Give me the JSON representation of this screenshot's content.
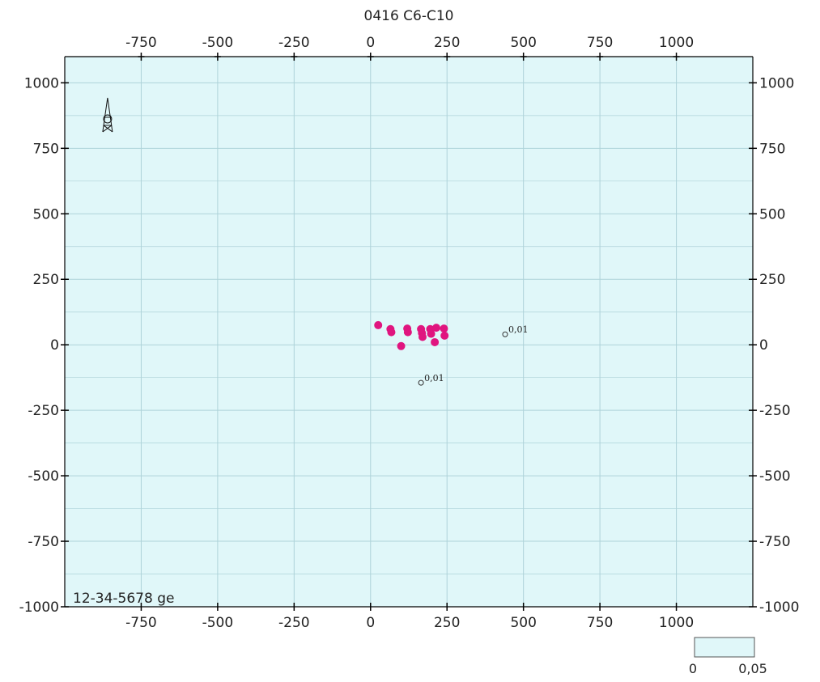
{
  "chart_data": {
    "type": "scatter",
    "title": "0416 C6-C10",
    "xlim": [
      -1000,
      1250
    ],
    "ylim": [
      -1000,
      1100
    ],
    "x_ticks": [
      -750,
      -500,
      -250,
      0,
      250,
      500,
      750,
      1000
    ],
    "y_ticks": [
      -1000,
      -750,
      -500,
      -250,
      0,
      250,
      500,
      750,
      1000
    ],
    "grid": true,
    "grid_x": [
      -750,
      -500,
      -250,
      0,
      250,
      500,
      750,
      1000
    ],
    "grid_y": [
      -1000,
      -750,
      -500,
      -250,
      0,
      250,
      500,
      750,
      1000
    ],
    "well_label": "12-34-5678 ge",
    "well_marker_position": {
      "x": -860,
      "y": 850
    },
    "series": [
      {
        "marker": "filled-circle",
        "color": "#e0157f",
        "points": [
          {
            "x": 25,
            "y": 75
          },
          {
            "x": 65,
            "y": 60
          },
          {
            "x": 68,
            "y": 48
          },
          {
            "x": 100,
            "y": -5
          },
          {
            "x": 120,
            "y": 62
          },
          {
            "x": 122,
            "y": 48
          },
          {
            "x": 165,
            "y": 60
          },
          {
            "x": 168,
            "y": 45
          },
          {
            "x": 170,
            "y": 30
          },
          {
            "x": 195,
            "y": 60
          },
          {
            "x": 198,
            "y": 42
          },
          {
            "x": 210,
            "y": 10
          },
          {
            "x": 215,
            "y": 65
          },
          {
            "x": 240,
            "y": 62
          },
          {
            "x": 242,
            "y": 35
          }
        ]
      },
      {
        "marker": "open-circle",
        "color": "#333333",
        "points": [
          {
            "x": 440,
            "y": 40,
            "label": "0,01"
          },
          {
            "x": 165,
            "y": -145,
            "label": "0,01"
          }
        ]
      }
    ],
    "colorbar": {
      "min_label": "0",
      "max_label": "0,05",
      "color": "#e0f7f9"
    },
    "colors": {
      "plot_background": "#e0f7f9",
      "grid": "#aed3d9",
      "axis": "#000000"
    }
  }
}
